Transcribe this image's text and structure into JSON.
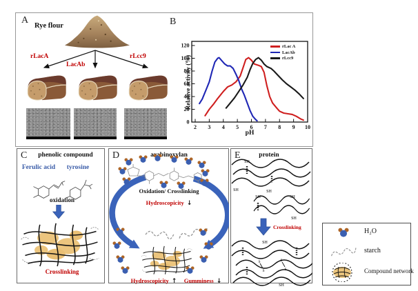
{
  "panelA": {
    "label": "A",
    "title": "Rye flour",
    "enzyme_labels": [
      "rLacA",
      "LacAb",
      "rLcc9"
    ]
  },
  "panelB": {
    "label": "B"
  },
  "chart_data": {
    "type": "line",
    "title": "",
    "xlabel": "pH",
    "ylabel": "Relative activity (%)",
    "xlim": [
      2,
      10
    ],
    "ylim": [
      0,
      120
    ],
    "xticks": [
      2,
      3,
      4,
      5,
      6,
      7,
      8,
      9,
      10
    ],
    "yticks": [
      0,
      20,
      40,
      60,
      80,
      100,
      120
    ],
    "grid": false,
    "legend_position": "top-right",
    "series": [
      {
        "name": "rLac A",
        "color": "#cf1f1f",
        "points": [
          [
            2.7,
            10
          ],
          [
            3.0,
            20
          ],
          [
            3.3,
            28
          ],
          [
            3.6,
            37
          ],
          [
            4.0,
            48
          ],
          [
            4.3,
            55
          ],
          [
            4.6,
            58
          ],
          [
            4.9,
            63
          ],
          [
            5.2,
            72
          ],
          [
            5.4,
            85
          ],
          [
            5.6,
            98
          ],
          [
            5.8,
            101
          ],
          [
            6.0,
            97
          ],
          [
            6.2,
            91
          ],
          [
            6.5,
            89
          ],
          [
            6.7,
            87
          ],
          [
            6.9,
            78
          ],
          [
            7.1,
            57
          ],
          [
            7.3,
            40
          ],
          [
            7.5,
            30
          ],
          [
            7.8,
            22
          ],
          [
            8.0,
            17
          ],
          [
            8.3,
            14
          ],
          [
            8.6,
            13
          ],
          [
            8.9,
            12
          ],
          [
            9.2,
            9
          ],
          [
            9.5,
            5
          ],
          [
            9.7,
            3
          ]
        ]
      },
      {
        "name": "LacAb",
        "color": "#1f27b5",
        "points": [
          [
            2.3,
            29
          ],
          [
            2.5,
            36
          ],
          [
            2.8,
            52
          ],
          [
            3.0,
            63
          ],
          [
            3.2,
            80
          ],
          [
            3.4,
            94
          ],
          [
            3.6,
            100
          ],
          [
            3.7,
            101
          ],
          [
            3.9,
            96
          ],
          [
            4.1,
            91
          ],
          [
            4.3,
            88
          ],
          [
            4.5,
            88
          ],
          [
            4.7,
            84
          ],
          [
            4.9,
            75
          ],
          [
            5.1,
            65
          ],
          [
            5.3,
            52
          ],
          [
            5.5,
            42
          ],
          [
            5.7,
            30
          ],
          [
            5.9,
            18
          ],
          [
            6.1,
            9
          ],
          [
            6.3,
            4
          ],
          [
            6.4,
            2
          ]
        ]
      },
      {
        "name": "rLcc9",
        "color": "#1a1a1a",
        "points": [
          [
            4.2,
            22
          ],
          [
            4.5,
            30
          ],
          [
            4.8,
            38
          ],
          [
            5.1,
            48
          ],
          [
            5.4,
            58
          ],
          [
            5.7,
            70
          ],
          [
            5.9,
            82
          ],
          [
            6.1,
            92
          ],
          [
            6.3,
            98
          ],
          [
            6.5,
            101
          ],
          [
            6.7,
            97
          ],
          [
            6.9,
            91
          ],
          [
            7.1,
            87
          ],
          [
            7.4,
            84
          ],
          [
            7.6,
            80
          ],
          [
            7.9,
            73
          ],
          [
            8.2,
            66
          ],
          [
            8.5,
            60
          ],
          [
            8.8,
            55
          ],
          [
            9.1,
            50
          ],
          [
            9.4,
            44
          ],
          [
            9.7,
            37
          ]
        ]
      }
    ]
  },
  "panelC": {
    "label": "C",
    "title": "phenolic compound",
    "compound_left": "Ferulic acid",
    "compound_right": "tyrosine",
    "step_label": "oxidation",
    "result_label": "Crosslinking"
  },
  "panelD": {
    "label": "D",
    "title": "arabinoxylan",
    "process_label": "Oxidation/ Crosslinking",
    "effect_top": {
      "text": "Hydroscopicity",
      "arrow": "↓"
    },
    "effect_bottom_left": {
      "text": "Hydroscopicity",
      "arrow": "↑"
    },
    "effect_bottom_right": {
      "text": "Gumminess",
      "arrow": "↓"
    }
  },
  "panelE": {
    "label": "E",
    "title": "protein",
    "crosslink_label": "Crosslinking",
    "sh_label": "SH",
    "s_label": "S"
  },
  "legend_box": {
    "items": [
      {
        "icon": "water-molecule-icon",
        "label": "H₂O"
      },
      {
        "icon": "starch-icon",
        "label": "starch"
      },
      {
        "icon": "compound-network-icon",
        "label": "Compound network"
      }
    ]
  }
}
